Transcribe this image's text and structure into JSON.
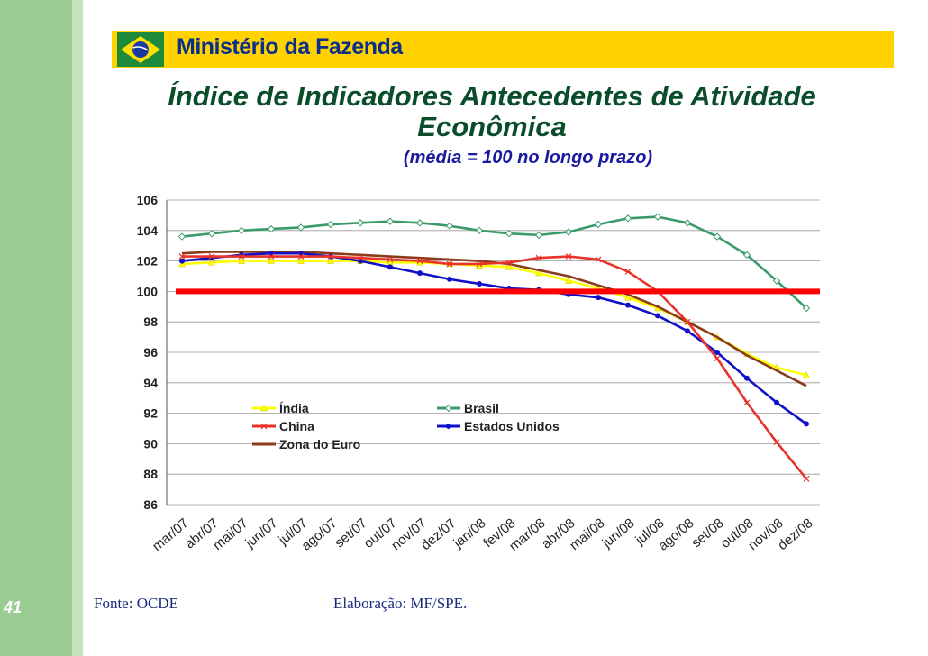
{
  "header": {
    "ministry": "Ministério da Fazenda"
  },
  "title_line1": "Índice de Indicadores Antecedentes de Atividade",
  "title_line2": "Econômica",
  "subtitle": "(média = 100 no longo prazo)",
  "page_number": "41",
  "footer": {
    "source": "Fonte: OCDE",
    "credit": "Elaboração: MF/SPE."
  },
  "colors": {
    "header": "#ffd200",
    "reference": "#ff0000"
  },
  "chart_data": {
    "type": "line",
    "categories": [
      "mar/07",
      "abr/07",
      "mai/07",
      "jun/07",
      "jul/07",
      "ago/07",
      "set/07",
      "out/07",
      "nov/07",
      "dez/07",
      "jan/08",
      "fev/08",
      "mar/08",
      "abr/08",
      "mai/08",
      "jun/08",
      "jul/08",
      "ago/08",
      "set/08",
      "out/08",
      "nov/08",
      "dez/08"
    ],
    "ylim": [
      86,
      106
    ],
    "yticks": [
      86,
      88,
      90,
      92,
      94,
      96,
      98,
      100,
      102,
      104,
      106
    ],
    "reference_line": 100,
    "series": [
      {
        "name": "Índia",
        "color": "#ffff00",
        "marker": "triangle",
        "values": [
          101.8,
          101.9,
          102.0,
          102.0,
          102.0,
          102.0,
          102.0,
          101.9,
          101.9,
          101.8,
          101.7,
          101.6,
          101.2,
          100.7,
          100.2,
          99.6,
          98.9,
          98.0,
          97.0,
          95.9,
          95.0,
          94.5
        ]
      },
      {
        "name": "Brasil",
        "color": "#3a9a6a",
        "marker": "diamond",
        "values": [
          103.6,
          103.8,
          104.0,
          104.1,
          104.2,
          104.4,
          104.5,
          104.6,
          104.5,
          104.3,
          104.0,
          103.8,
          103.7,
          103.9,
          104.4,
          104.8,
          104.9,
          104.5,
          103.6,
          102.4,
          100.7,
          98.9
        ]
      },
      {
        "name": "China",
        "color": "#e8322a",
        "marker": "x",
        "values": [
          102.3,
          102.3,
          102.3,
          102.3,
          102.3,
          102.3,
          102.2,
          102.1,
          102.0,
          101.8,
          101.8,
          101.9,
          102.2,
          102.3,
          102.1,
          101.3,
          100.0,
          98.0,
          95.6,
          92.7,
          90.1,
          87.7
        ]
      },
      {
        "name": "Estados Unidos",
        "color": "#1010c8",
        "marker": "dot",
        "values": [
          102.0,
          102.2,
          102.4,
          102.5,
          102.5,
          102.3,
          102.0,
          101.6,
          101.2,
          100.8,
          100.5,
          100.2,
          100.1,
          99.8,
          99.6,
          99.1,
          98.4,
          97.4,
          96.0,
          94.3,
          92.7,
          91.3
        ]
      },
      {
        "name": "Zona do Euro",
        "color": "#8b3a1a",
        "marker": "none",
        "values": [
          102.5,
          102.6,
          102.6,
          102.6,
          102.6,
          102.5,
          102.4,
          102.3,
          102.2,
          102.1,
          102.0,
          101.8,
          101.4,
          101.0,
          100.4,
          99.8,
          99.0,
          98.0,
          97.0,
          95.8,
          94.8,
          93.8
        ]
      }
    ]
  }
}
